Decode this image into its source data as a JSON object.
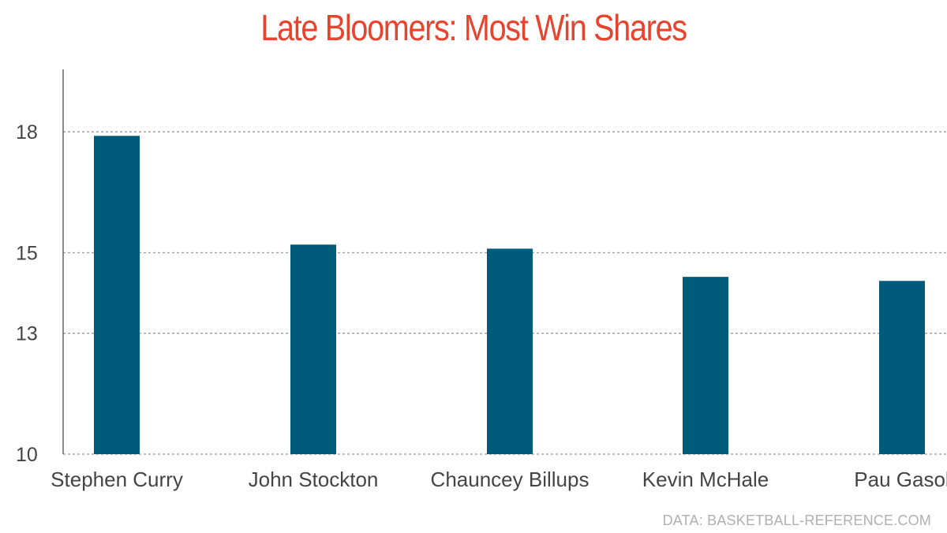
{
  "title": "Late Bloomers: Most Win Shares",
  "source": "DATA: BASKETBALL-REFERENCE.COM",
  "colors": {
    "title": "#e8432d",
    "bar": "#005a7a",
    "grid": "#9a9a9a",
    "text": "#444444",
    "source": "#b0b0b0"
  },
  "chart_data": {
    "type": "bar",
    "title": "Late Bloomers: Most Win Shares",
    "xlabel": "",
    "ylabel": "",
    "categories": [
      "Stephen Curry",
      "John Stockton",
      "Chauncey Billups",
      "Kevin McHale",
      "Pau Gasol"
    ],
    "values": [
      17.9,
      15.2,
      15.1,
      14.4,
      14.3
    ],
    "yticks": [
      10,
      13,
      15,
      18
    ],
    "ytick_labels": [
      "10",
      "13",
      "15",
      "18"
    ],
    "ylim": [
      10,
      18.5
    ],
    "grid": true,
    "grid_style": "dotted",
    "legend": "none"
  }
}
